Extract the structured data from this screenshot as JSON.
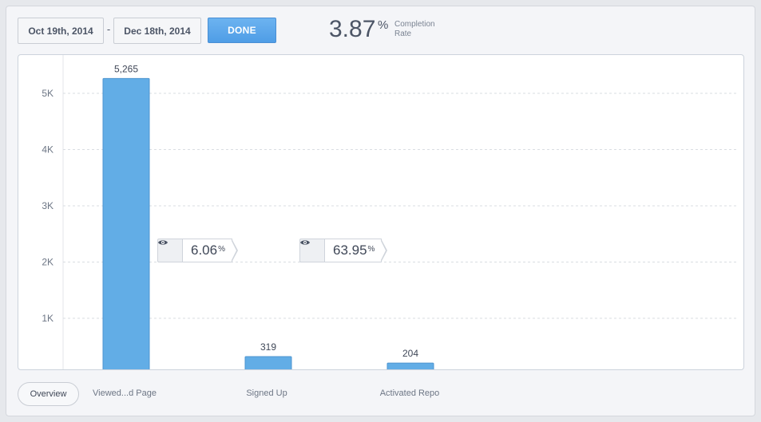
{
  "header": {
    "start_date": "Oct 19th, 2014",
    "end_date": "Dec 18th, 2014",
    "separator": "-",
    "done_label": "DONE",
    "completion_value": "3.87",
    "completion_unit": "%",
    "completion_label_line1": "Completion",
    "completion_label_line2": "Rate"
  },
  "conversions": [
    {
      "value": "6.06",
      "unit": "%",
      "icon": "eye-icon"
    },
    {
      "value": "63.95",
      "unit": "%",
      "icon": "eye-icon"
    }
  ],
  "footer": {
    "overview_label": "Overview",
    "steps": [
      "Viewed...d Page",
      "Signed Up",
      "Activated Repo"
    ]
  },
  "colors": {
    "bar": "#62ade6",
    "accent": "#4f9de6"
  },
  "chart_data": {
    "type": "bar",
    "categories": [
      "Viewed...d Page",
      "Signed Up",
      "Activated Repo"
    ],
    "values": [
      5265,
      319,
      204
    ],
    "value_labels": [
      "5,265",
      "319",
      "204"
    ],
    "ylim": [
      0,
      5500
    ],
    "yticks": [
      1000,
      2000,
      3000,
      4000,
      5000
    ],
    "ytick_labels": [
      "1K",
      "2K",
      "3K",
      "4K",
      "5K"
    ],
    "grid": true
  }
}
